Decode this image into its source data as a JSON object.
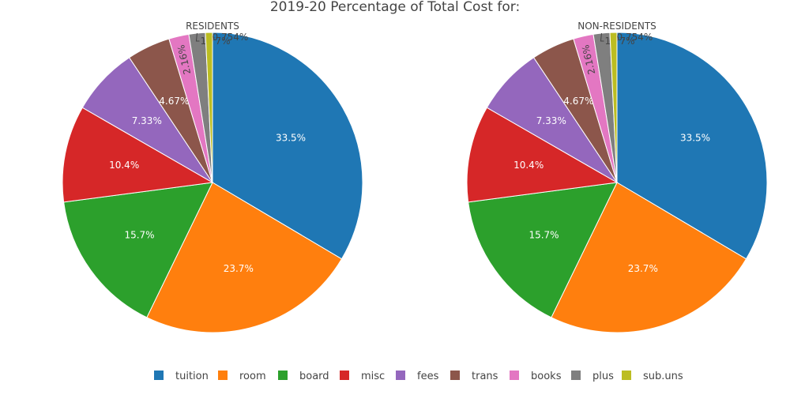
{
  "chart_data": {
    "type": "pie",
    "title": "2019-20 Percentage of Total Cost for:",
    "categories": [
      "tuition",
      "room",
      "board",
      "misc",
      "fees",
      "trans",
      "books",
      "plus",
      "sub.uns"
    ],
    "colors": [
      "#1f77b4",
      "#ff7f0e",
      "#2ca02c",
      "#d62728",
      "#9467bd",
      "#8c564b",
      "#e377c2",
      "#7f7f7f",
      "#bcbd22"
    ],
    "legend_position": "bottom",
    "pies": [
      {
        "name": "RESIDENTS",
        "values": [
          33.5,
          23.7,
          15.7,
          10.4,
          7.33,
          4.67,
          2.16,
          1.77,
          0.754
        ],
        "labels": [
          "33.5%",
          "23.7%",
          "15.7%",
          "10.4%",
          "7.33%",
          "4.67%",
          "2.16%",
          "1.77%",
          "0.754%"
        ]
      },
      {
        "name": "NON-RESIDENTS",
        "values": [
          33.5,
          23.7,
          15.7,
          10.4,
          7.33,
          4.67,
          2.16,
          1.77,
          0.754
        ],
        "labels": [
          "33.5%",
          "23.7%",
          "15.7%",
          "10.4%",
          "7.33%",
          "4.67%",
          "2.16%",
          "1.77%",
          "0.754%"
        ]
      }
    ]
  }
}
